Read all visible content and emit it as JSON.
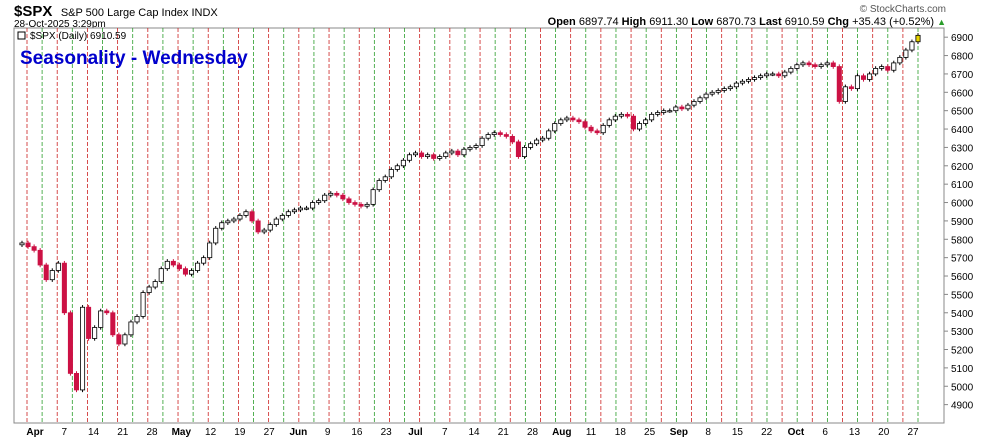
{
  "header": {
    "symbol": "$SPX",
    "description": "S&P 500 Large Cap Index INDX",
    "date": "28-Oct-2025 3:29pm",
    "open_label": "Open",
    "open": "6897.74",
    "high_label": "High",
    "high": "6911.30",
    "low_label": "Low",
    "low": "6870.73",
    "last_label": "Last",
    "last": "6910.59",
    "chg_label": "Chg",
    "chg": "+35.43 (+0.52%)",
    "brand": "© StockCharts.com"
  },
  "chart_data": {
    "type": "candlestick",
    "title": "Seasonality - Wednesday",
    "legend": "$SPX (Daily) 6910.59",
    "legend_placement": "top-left",
    "ylim": [
      4800,
      6950
    ],
    "yticks": [
      4900,
      5000,
      5100,
      5200,
      5300,
      5400,
      5500,
      5600,
      5700,
      5800,
      5900,
      6000,
      6100,
      6200,
      6300,
      6400,
      6500,
      6600,
      6700,
      6800,
      6900
    ],
    "x_labels": [
      "Apr",
      "7",
      "14",
      "21",
      "28",
      "May",
      "12",
      "19",
      "27",
      "Jun",
      "9",
      "16",
      "23",
      "Jul",
      "7",
      "14",
      "21",
      "28",
      "Aug",
      "11",
      "18",
      "25",
      "Sep",
      "8",
      "15",
      "22",
      "Oct",
      "6",
      "13",
      "20",
      "27"
    ],
    "x_label_bold": [
      "Apr",
      "May",
      "Jun",
      "Jul",
      "Aug",
      "Sep",
      "Oct"
    ],
    "vline_colors": {
      "up": "#2a9d2a",
      "down": "#cc2222"
    },
    "colors": {
      "up_fill": "#ffffff",
      "up_stroke": "#000000",
      "down_fill": "#cc1144",
      "title": "#0000cc",
      "last_marker": "#e8d400"
    },
    "closes": [
      5780,
      5760,
      5740,
      5660,
      5580,
      5630,
      5670,
      5400,
      5070,
      4980,
      5430,
      5260,
      5320,
      5410,
      5400,
      5280,
      5230,
      5280,
      5350,
      5380,
      5510,
      5540,
      5570,
      5640,
      5680,
      5660,
      5640,
      5610,
      5630,
      5670,
      5700,
      5780,
      5860,
      5890,
      5900,
      5910,
      5930,
      5950,
      5900,
      5840,
      5850,
      5880,
      5910,
      5930,
      5950,
      5960,
      5970,
      5970,
      6000,
      6010,
      6040,
      6050,
      6040,
      6020,
      6000,
      5990,
      5980,
      5990,
      6070,
      6120,
      6140,
      6180,
      6200,
      6230,
      6260,
      6270,
      6250,
      6260,
      6240,
      6250,
      6270,
      6280,
      6260,
      6290,
      6300,
      6310,
      6350,
      6370,
      6380,
      6370,
      6360,
      6330,
      6250,
      6300,
      6320,
      6340,
      6350,
      6390,
      6430,
      6450,
      6460,
      6450,
      6440,
      6410,
      6390,
      6380,
      6420,
      6450,
      6470,
      6480,
      6470,
      6400,
      6430,
      6450,
      6480,
      6490,
      6500,
      6500,
      6520,
      6510,
      6530,
      6550,
      6570,
      6590,
      6600,
      6610,
      6620,
      6630,
      6650,
      6660,
      6670,
      6680,
      6690,
      6700,
      6700,
      6690,
      6710,
      6730,
      6750,
      6760,
      6750,
      6740,
      6750,
      6760,
      6740,
      6550,
      6630,
      6620,
      6690,
      6670,
      6700,
      6730,
      6740,
      6720,
      6760,
      6790,
      6830,
      6875,
      6910
    ]
  }
}
